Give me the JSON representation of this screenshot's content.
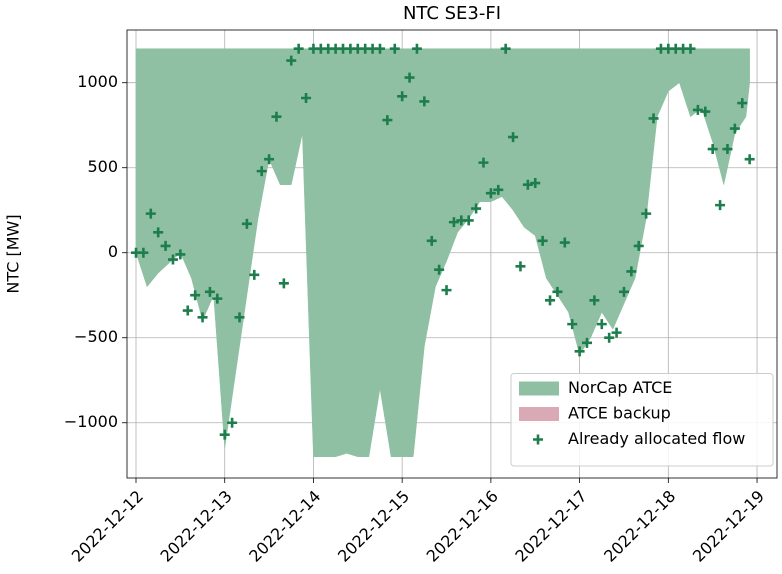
{
  "chart_data": {
    "type": "area",
    "title": "NTC SE3-FI",
    "ylabel": "NTC [MW]",
    "xlim": [
      "2022-12-11T21:34",
      "2022-12-19T05:24"
    ],
    "ylim": [
      -1325,
      1310
    ],
    "xticks": [
      "2022-12-12",
      "2022-12-13",
      "2022-12-14",
      "2022-12-15",
      "2022-12-16",
      "2022-12-17",
      "2022-12-18",
      "2022-12-19"
    ],
    "yticks": [
      {
        "value": -1000,
        "label": "−1000"
      },
      {
        "value": -500,
        "label": "−500"
      },
      0,
      500,
      1000
    ],
    "grid": true,
    "legend": "lower right",
    "series": [
      {
        "name": "NorCap ATCE",
        "type": "area",
        "color": "#8fc0a3",
        "x": [
          "2022-12-12T00:00",
          "2022-12-12T03:00",
          "2022-12-12T06:00",
          "2022-12-12T09:00",
          "2022-12-12T12:00",
          "2022-12-12T15:00",
          "2022-12-12T18:00",
          "2022-12-12T21:00",
          "2022-12-13T00:00",
          "2022-12-13T03:00",
          "2022-12-13T06:00",
          "2022-12-13T09:00",
          "2022-12-13T12:00",
          "2022-12-13T15:00",
          "2022-12-13T18:00",
          "2022-12-13T21:00",
          "2022-12-14T00:00",
          "2022-12-14T03:00",
          "2022-12-14T06:00",
          "2022-12-14T09:00",
          "2022-12-14T12:00",
          "2022-12-14T15:00",
          "2022-12-14T18:00",
          "2022-12-14T21:00",
          "2022-12-15T00:00",
          "2022-12-15T03:00",
          "2022-12-15T06:00",
          "2022-12-15T09:00",
          "2022-12-15T12:00",
          "2022-12-15T15:00",
          "2022-12-15T18:00",
          "2022-12-15T21:00",
          "2022-12-16T00:00",
          "2022-12-16T03:00",
          "2022-12-16T06:00",
          "2022-12-16T09:00",
          "2022-12-16T12:00",
          "2022-12-16T15:00",
          "2022-12-16T18:00",
          "2022-12-16T21:00",
          "2022-12-17T00:00",
          "2022-12-17T03:00",
          "2022-12-17T06:00",
          "2022-12-17T09:00",
          "2022-12-17T12:00",
          "2022-12-17T15:00",
          "2022-12-17T18:00",
          "2022-12-17T21:00",
          "2022-12-18T00:00",
          "2022-12-18T03:00",
          "2022-12-18T06:00",
          "2022-12-18T09:00",
          "2022-12-18T12:00",
          "2022-12-18T15:00",
          "2022-12-18T18:00",
          "2022-12-18T21:00",
          "2022-12-18T22:00"
        ],
        "upper": [
          1200,
          1200,
          1200,
          1200,
          1200,
          1200,
          1200,
          1200,
          1200,
          1200,
          1200,
          1200,
          1200,
          1200,
          1200,
          1200,
          1200,
          1200,
          1200,
          1200,
          1200,
          1200,
          1200,
          1200,
          1200,
          1200,
          1200,
          1200,
          1200,
          1200,
          1200,
          1200,
          1200,
          1200,
          1200,
          1200,
          1200,
          1200,
          1200,
          1200,
          1200,
          1200,
          1200,
          1200,
          1200,
          1200,
          1200,
          1200,
          1200,
          1200,
          1200,
          1200,
          1200,
          1200,
          1200,
          1200,
          1200
        ],
        "lower": [
          0,
          -200,
          -120,
          -60,
          0,
          -150,
          -400,
          -250,
          -1150,
          -700,
          -250,
          200,
          550,
          400,
          400,
          700,
          -1200,
          -1200,
          -1200,
          -1180,
          -1200,
          -1200,
          -800,
          -1200,
          -1200,
          -1200,
          -550,
          -200,
          -50,
          120,
          200,
          300,
          300,
          330,
          250,
          150,
          100,
          -150,
          -250,
          -350,
          -600,
          -500,
          -350,
          -450,
          -300,
          -150,
          200,
          800,
          950,
          1000,
          800,
          850,
          650,
          400,
          700,
          800,
          1000
        ]
      },
      {
        "name": "ATCE backup",
        "type": "area",
        "color": "#d9aab5"
      },
      {
        "name": "Already allocated flow",
        "type": "scatter",
        "color": "#1e7d4c",
        "x": [
          "2022-12-12T00:00",
          "2022-12-12T02:00",
          "2022-12-12T04:00",
          "2022-12-12T06:00",
          "2022-12-12T08:00",
          "2022-12-12T10:00",
          "2022-12-12T12:00",
          "2022-12-12T14:00",
          "2022-12-12T16:00",
          "2022-12-12T18:00",
          "2022-12-12T20:00",
          "2022-12-12T22:00",
          "2022-12-13T00:00",
          "2022-12-13T02:00",
          "2022-12-13T04:00",
          "2022-12-13T06:00",
          "2022-12-13T08:00",
          "2022-12-13T10:00",
          "2022-12-13T12:00",
          "2022-12-13T14:00",
          "2022-12-13T16:00",
          "2022-12-13T18:00",
          "2022-12-13T20:00",
          "2022-12-13T22:00",
          "2022-12-14T00:00",
          "2022-12-14T02:00",
          "2022-12-14T04:00",
          "2022-12-14T06:00",
          "2022-12-14T08:00",
          "2022-12-14T10:00",
          "2022-12-14T12:00",
          "2022-12-14T14:00",
          "2022-12-14T16:00",
          "2022-12-14T18:00",
          "2022-12-14T20:00",
          "2022-12-14T22:00",
          "2022-12-15T00:00",
          "2022-12-15T02:00",
          "2022-12-15T04:00",
          "2022-12-15T06:00",
          "2022-12-15T08:00",
          "2022-12-15T10:00",
          "2022-12-15T12:00",
          "2022-12-15T14:00",
          "2022-12-15T16:00",
          "2022-12-15T18:00",
          "2022-12-15T20:00",
          "2022-12-15T22:00",
          "2022-12-16T00:00",
          "2022-12-16T02:00",
          "2022-12-16T04:00",
          "2022-12-16T06:00",
          "2022-12-16T08:00",
          "2022-12-16T10:00",
          "2022-12-16T12:00",
          "2022-12-16T14:00",
          "2022-12-16T16:00",
          "2022-12-16T18:00",
          "2022-12-16T20:00",
          "2022-12-16T22:00",
          "2022-12-17T00:00",
          "2022-12-17T02:00",
          "2022-12-17T04:00",
          "2022-12-17T06:00",
          "2022-12-17T08:00",
          "2022-12-17T10:00",
          "2022-12-17T12:00",
          "2022-12-17T14:00",
          "2022-12-17T16:00",
          "2022-12-17T18:00",
          "2022-12-17T20:00",
          "2022-12-17T22:00",
          "2022-12-18T00:00",
          "2022-12-18T02:00",
          "2022-12-18T04:00",
          "2022-12-18T06:00",
          "2022-12-18T08:00",
          "2022-12-18T10:00",
          "2022-12-18T12:00",
          "2022-12-18T14:00",
          "2022-12-18T16:00",
          "2022-12-18T18:00",
          "2022-12-18T20:00",
          "2022-12-18T22:00"
        ],
        "values": [
          0,
          0,
          230,
          120,
          40,
          -40,
          -10,
          -340,
          -250,
          -380,
          -230,
          -270,
          -1070,
          -1000,
          -380,
          170,
          -130,
          480,
          550,
          800,
          -180,
          1130,
          1200,
          910,
          1200,
          1200,
          1200,
          1200,
          1200,
          1200,
          1200,
          1200,
          1200,
          1200,
          780,
          1200,
          920,
          1030,
          1200,
          890,
          70,
          -100,
          -220,
          180,
          190,
          190,
          260,
          530,
          350,
          370,
          1200,
          680,
          -80,
          400,
          410,
          70,
          -280,
          -230,
          60,
          -420,
          -580,
          -530,
          -280,
          -420,
          -500,
          -470,
          -230,
          -110,
          40,
          230,
          790,
          1200,
          1200,
          1200,
          1200,
          1200,
          840,
          830,
          610,
          280,
          610,
          730,
          880,
          550
        ]
      }
    ]
  }
}
